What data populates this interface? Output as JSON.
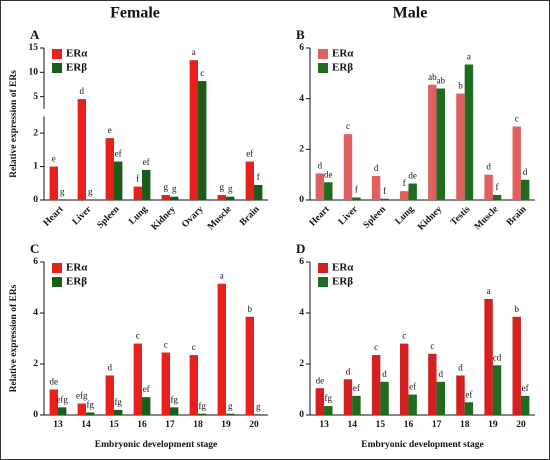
{
  "headers": [
    "Female",
    "Male"
  ],
  "chart_data": [
    {
      "type": "bar",
      "panel": "A",
      "categories": [
        "Heart",
        "Liver",
        "Spleen",
        "Lung",
        "Kidney",
        "Ovary",
        "Muscle",
        "Brain"
      ],
      "series": [
        {
          "name": "ERα",
          "color": "#e8201c",
          "values": [
            1.0,
            4.5,
            1.85,
            0.4,
            0.15,
            12.5,
            0.15,
            1.15
          ],
          "letters": [
            "e",
            "d",
            "e",
            "f",
            "g",
            "a",
            "g",
            "ef"
          ]
        },
        {
          "name": "ERβ",
          "color": "#1a5c1a",
          "values": [
            0.02,
            0.02,
            1.15,
            0.9,
            0.1,
            8.2,
            0.1,
            0.45
          ],
          "letters": [
            "g",
            "g",
            "ef",
            "ef",
            "g",
            "c",
            "g",
            "f"
          ]
        }
      ],
      "ylim": [
        0,
        15
      ],
      "ybreak": 2.5,
      "yticks": [
        0,
        1,
        2,
        5,
        10,
        15
      ],
      "ylabel": "Relative expression of ERs",
      "legend": "upper left",
      "xtick_rotation": 45
    },
    {
      "type": "bar",
      "panel": "B",
      "categories": [
        "Heart",
        "Liver",
        "Spleen",
        "Lung",
        "Kidney",
        "Testis",
        "Muscle",
        "Brain"
      ],
      "series": [
        {
          "name": "ERα",
          "color": "#e06060",
          "values": [
            1.05,
            2.6,
            0.95,
            0.35,
            4.55,
            4.2,
            1.0,
            2.9
          ],
          "letters": [
            "d",
            "c",
            "d",
            "f",
            "ab",
            "b",
            "d",
            "c"
          ]
        },
        {
          "name": "ERβ",
          "color": "#1f6b1f",
          "values": [
            0.7,
            0.1,
            0.05,
            0.65,
            4.4,
            5.35,
            0.2,
            0.8
          ],
          "letters": [
            "de",
            "f",
            "f",
            "de",
            "ab",
            "a",
            "f",
            "d"
          ]
        }
      ],
      "ylim": [
        0,
        6
      ],
      "yticks": [
        0,
        2,
        4,
        6
      ],
      "legend": "upper left",
      "xtick_rotation": 45
    },
    {
      "type": "bar",
      "panel": "C",
      "categories": [
        "13",
        "14",
        "15",
        "16",
        "17",
        "18",
        "19",
        "20"
      ],
      "series": [
        {
          "name": "ERα",
          "color": "#e8201c",
          "values": [
            1.0,
            0.45,
            1.55,
            2.8,
            2.45,
            2.35,
            5.15,
            3.85
          ],
          "letters": [
            "de",
            "efg",
            "d",
            "c",
            "c",
            "c",
            "a",
            "b"
          ]
        },
        {
          "name": "ERβ",
          "color": "#1a5c1a",
          "values": [
            0.3,
            0.1,
            0.2,
            0.7,
            0.3,
            0.05,
            0.05,
            0.03
          ],
          "letters": [
            "efg",
            "fg",
            "fg",
            "ef",
            "fg",
            "fg",
            "g",
            "g"
          ]
        }
      ],
      "ylim": [
        0,
        6
      ],
      "yticks": [
        0,
        2,
        4,
        6
      ],
      "ylabel": "Relative expression of ERs",
      "xlabel": "Embryonic development stage",
      "legend": "upper left",
      "xtick_rotation": 0
    },
    {
      "type": "bar",
      "panel": "D",
      "categories": [
        "13",
        "14",
        "15",
        "16",
        "17",
        "18",
        "19",
        "20"
      ],
      "series": [
        {
          "name": "ERα",
          "color": "#d42020",
          "values": [
            1.05,
            1.4,
            2.35,
            2.8,
            2.4,
            1.55,
            4.55,
            3.85
          ],
          "letters": [
            "de",
            "d",
            "c",
            "c",
            "c",
            "d",
            "a",
            "b"
          ]
        },
        {
          "name": "ERβ",
          "color": "#1f6b1f",
          "values": [
            0.35,
            0.75,
            1.3,
            0.8,
            1.3,
            0.5,
            1.95,
            0.75
          ],
          "letters": [
            "fg",
            "ef",
            "d",
            "ef",
            "d",
            "ef",
            "cd",
            "ef"
          ]
        }
      ],
      "ylim": [
        0,
        6
      ],
      "yticks": [
        0,
        2,
        4,
        6
      ],
      "xlabel": "Embryonic development stage",
      "legend": "upper left",
      "xtick_rotation": 0
    }
  ]
}
